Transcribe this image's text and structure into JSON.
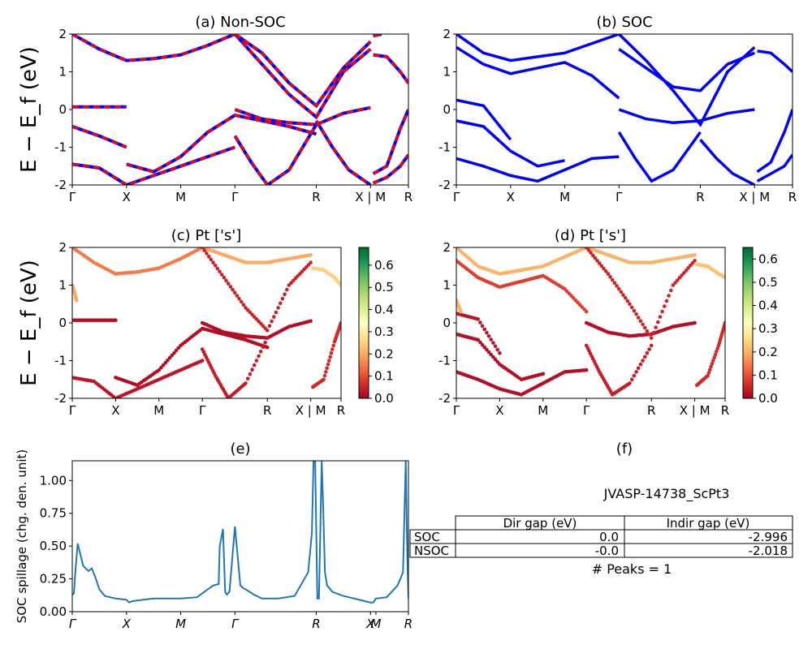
{
  "colors": {
    "nonsoc_red": "#ff0000",
    "nonsoc_blue": "#0000ff",
    "soc_blue": "#0000ff",
    "spillage_line": "#1f77b4",
    "cmap": [
      "#a50026",
      "#d73027",
      "#f46d43",
      "#fdae61",
      "#fee08b",
      "#ffffbf",
      "#d9ef8b",
      "#a6d96a",
      "#66bd63",
      "#1a9850",
      "#006837"
    ]
  },
  "panels": {
    "a": {
      "title": "(a) Non-SOC"
    },
    "b": {
      "title": "(b) SOC"
    },
    "c": {
      "title": "(c)  Pt ['s']"
    },
    "d": {
      "title": "(d) Pt ['s']"
    },
    "e": {
      "title": "(e)"
    },
    "f": {
      "title": "(f)"
    }
  },
  "band_ylabel": "E − E_f (eV)",
  "spillage_ylabel": "SOC spillage (chg. den. unit)",
  "kpath_labels": [
    "Γ",
    "X",
    "M",
    "Γ",
    "R",
    "X | M",
    "R"
  ],
  "spillage_k_labels": [
    "Γ",
    "X",
    "M",
    "Γ",
    "R",
    "X",
    "M",
    "R"
  ],
  "info": {
    "material": "JVASP-14738_ScPt3",
    "table": {
      "col_headers": [
        "Dir gap (eV)",
        "Indir gap (eV)"
      ],
      "rows": [
        {
          "label": "SOC",
          "dir": "0.0",
          "indir": "-2.996"
        },
        {
          "label": "NSOC",
          "dir": "-0.0",
          "indir": "-2.018"
        }
      ]
    },
    "peaks": "# Peaks = 1"
  },
  "chart_data": [
    {
      "panel": "a",
      "type": "line",
      "title": "(a) Non-SOC",
      "ylabel": "E − E_f (eV)",
      "ylim": [
        -2,
        2
      ],
      "yticks": [
        -2,
        -1,
        0,
        1,
        2
      ],
      "xticks": [
        0,
        1,
        2,
        3,
        4.5,
        5.5,
        6.2
      ],
      "xtick_labels": [
        "Γ",
        "X",
        "M",
        "Γ",
        "R",
        "X | M",
        "R"
      ],
      "series": [
        {
          "x": [
            0,
            0.5,
            1,
            1.5,
            2,
            2.5,
            3
          ],
          "y": [
            2.0,
            1.6,
            1.3,
            1.35,
            1.45,
            1.7,
            2.0
          ]
        },
        {
          "x": [
            0,
            0.5,
            1
          ],
          "y": [
            0.07,
            0.07,
            0.07
          ]
        },
        {
          "x": [
            1,
            1.5,
            2,
            2.5,
            3,
            3.5,
            4,
            4.5
          ],
          "y": [
            -1.45,
            -1.65,
            -1.25,
            -0.6,
            -0.15,
            -0.3,
            -0.45,
            -0.65
          ]
        },
        {
          "x": [
            0,
            0.5,
            1,
            1.5,
            2,
            2.5,
            3
          ],
          "y": [
            -1.45,
            -1.55,
            -2.0,
            -1.75,
            -1.5,
            -1.25,
            -1.0
          ]
        },
        {
          "x": [
            0,
            0.5,
            1
          ],
          "y": [
            -0.45,
            -0.7,
            -1.0
          ]
        },
        {
          "x": [
            3,
            3.5,
            4,
            4.5,
            5,
            5.5
          ],
          "y": [
            2.0,
            1.2,
            0.4,
            -0.2,
            1.0,
            1.6
          ]
        },
        {
          "x": [
            3,
            3.5,
            4,
            4.5,
            5,
            5.5
          ],
          "y": [
            2.0,
            1.5,
            0.7,
            0.1,
            1.1,
            1.8
          ]
        },
        {
          "x": [
            3,
            3.5,
            4,
            4.5,
            5,
            5.5
          ],
          "y": [
            0.0,
            -0.25,
            -0.35,
            -0.4,
            -0.1,
            0.05
          ]
        },
        {
          "x": [
            3,
            3.3,
            3.6,
            4,
            4.5
          ],
          "y": [
            -0.7,
            -1.4,
            -2.0,
            -1.6,
            -0.4
          ]
        },
        {
          "x": [
            4.5,
            4.8,
            5.1,
            5.5
          ],
          "y": [
            -0.3,
            -1.0,
            -1.6,
            -2.0
          ]
        },
        {
          "x": [
            5.55,
            5.8,
            6.05,
            6.2
          ],
          "y": [
            1.45,
            1.4,
            1.0,
            0.7
          ]
        },
        {
          "x": [
            5.55,
            5.8,
            6.05,
            6.2
          ],
          "y": [
            -1.7,
            -1.5,
            -0.5,
            0.0
          ]
        },
        {
          "x": [
            5.55,
            5.8,
            6.05,
            6.2
          ],
          "y": [
            -1.95,
            -1.8,
            -1.5,
            -1.2
          ]
        },
        {
          "x": [
            5.55,
            5.7
          ],
          "y": [
            1.95,
            2.0
          ]
        }
      ]
    },
    {
      "panel": "b",
      "type": "line",
      "title": "(b) SOC",
      "ylim": [
        -2,
        2
      ],
      "yticks": [
        -2,
        -1,
        0,
        1,
        2
      ],
      "xticks": [
        0,
        1,
        2,
        3,
        4.5,
        5.5,
        6.2
      ],
      "xtick_labels": [
        "Γ",
        "X",
        "M",
        "Γ",
        "R",
        "X | M",
        "R"
      ],
      "series": [
        {
          "x": [
            0,
            0.5,
            1,
            1.5,
            2,
            2.5,
            3
          ],
          "y": [
            1.65,
            1.2,
            0.95,
            1.1,
            1.25,
            0.9,
            0.3
          ]
        },
        {
          "x": [
            0,
            0.5,
            1,
            1.5,
            2,
            2.5,
            3
          ],
          "y": [
            2.0,
            1.5,
            1.3,
            1.4,
            1.5,
            1.75,
            2.0
          ]
        },
        {
          "x": [
            0,
            0.5,
            1
          ],
          "y": [
            0.25,
            0.1,
            -0.8
          ]
        },
        {
          "x": [
            0,
            0.5,
            1,
            1.5,
            2
          ],
          "y": [
            -0.3,
            -0.45,
            -1.1,
            -1.5,
            -1.35
          ]
        },
        {
          "x": [
            0,
            0.5,
            1,
            1.5,
            2,
            2.5,
            3
          ],
          "y": [
            -1.3,
            -1.5,
            -1.75,
            -1.9,
            -1.6,
            -1.3,
            -1.25
          ]
        },
        {
          "x": [
            3,
            3.5,
            4,
            4.5,
            5,
            5.5
          ],
          "y": [
            2.0,
            1.3,
            0.5,
            -0.4,
            1.0,
            1.65
          ]
        },
        {
          "x": [
            3,
            3.5,
            4,
            4.5,
            5,
            5.5
          ],
          "y": [
            1.6,
            1.1,
            0.6,
            0.5,
            1.2,
            1.5
          ]
        },
        {
          "x": [
            3,
            3.5,
            4,
            4.5,
            5,
            5.5
          ],
          "y": [
            0.0,
            -0.25,
            -0.35,
            -0.3,
            -0.1,
            0.0
          ]
        },
        {
          "x": [
            3,
            3.3,
            3.6,
            4,
            4.5
          ],
          "y": [
            -0.6,
            -1.3,
            -1.9,
            -1.6,
            -0.6
          ]
        },
        {
          "x": [
            4.5,
            4.8,
            5.1,
            5.5
          ],
          "y": [
            -0.8,
            -1.3,
            -1.7,
            -2.0
          ]
        },
        {
          "x": [
            5.55,
            5.8,
            6.05,
            6.2
          ],
          "y": [
            1.55,
            1.5,
            1.2,
            1.0
          ]
        },
        {
          "x": [
            5.55,
            5.8,
            6.05,
            6.2
          ],
          "y": [
            -1.65,
            -1.4,
            -0.6,
            0.0
          ]
        },
        {
          "x": [
            5.55,
            5.8,
            6.05,
            6.2
          ],
          "y": [
            -1.9,
            -1.7,
            -1.5,
            -1.2
          ]
        }
      ]
    },
    {
      "panel": "c",
      "type": "scatter",
      "title": "(c)  Pt ['s']",
      "ylabel": "E − E_f (eV)",
      "ylim": [
        -2,
        2
      ],
      "yticks": [
        -2,
        -1,
        0,
        1,
        2
      ],
      "xticks": [
        0,
        1,
        2,
        3,
        4.5,
        5.5,
        6.2
      ],
      "xtick_labels": [
        "Γ",
        "X",
        "M",
        "Γ",
        "R",
        "X | M",
        "R"
      ],
      "colorbar": {
        "min": 0.0,
        "max": 0.68,
        "ticks": [
          0.0,
          0.1,
          0.2,
          0.3,
          0.4,
          0.5,
          0.6
        ]
      },
      "series": [
        {
          "x": [
            0,
            0.5,
            1,
            1.5,
            2,
            2.5,
            3
          ],
          "y": [
            2.0,
            1.6,
            1.3,
            1.35,
            1.45,
            1.7,
            2.0
          ],
          "w": 0.15
        },
        {
          "x": [
            3,
            3.5,
            4,
            4.5,
            5,
            5.5
          ],
          "y": [
            2.0,
            1.8,
            1.6,
            1.6,
            1.7,
            1.8
          ],
          "w": 0.2
        },
        {
          "x": [
            5.55,
            5.8,
            6.05,
            6.2
          ],
          "y": [
            1.45,
            1.4,
            1.2,
            1.0
          ],
          "w": 0.25
        },
        {
          "x": [
            0,
            0.5,
            1
          ],
          "y": [
            0.07,
            0.07,
            0.07
          ],
          "w": 0.02
        },
        {
          "x": [
            0,
            0.5,
            1,
            1.5,
            2,
            2.5,
            3
          ],
          "y": [
            -1.45,
            -1.55,
            -2.0,
            -1.75,
            -1.5,
            -1.25,
            -1.0
          ],
          "w": 0.03
        },
        {
          "x": [
            1,
            1.5,
            2,
            2.5,
            3,
            3.5,
            4,
            4.5
          ],
          "y": [
            -1.45,
            -1.65,
            -1.25,
            -0.6,
            -0.15,
            -0.3,
            -0.45,
            -0.65
          ],
          "w": 0.02
        },
        {
          "x": [
            3,
            3.5,
            4,
            4.5,
            5,
            5.5
          ],
          "y": [
            0.0,
            -0.25,
            -0.35,
            -0.4,
            -0.1,
            0.05
          ],
          "w": 0.02
        },
        {
          "x": [
            3,
            3.5,
            4,
            4.5,
            5,
            5.5
          ],
          "y": [
            2.0,
            1.2,
            0.4,
            -0.2,
            1.0,
            1.6
          ],
          "w": 0.05
        },
        {
          "x": [
            3,
            3.3,
            3.6,
            4,
            4.5
          ],
          "y": [
            -0.7,
            -1.4,
            -2.0,
            -1.6,
            -0.4
          ],
          "w": 0.04
        },
        {
          "x": [
            5.55,
            5.8,
            6.05,
            6.2
          ],
          "y": [
            -1.7,
            -1.5,
            -0.5,
            0.0
          ],
          "w": 0.06
        },
        {
          "x": [
            0,
            0.1
          ],
          "y": [
            1.0,
            0.6
          ],
          "w": 0.2
        }
      ]
    },
    {
      "panel": "d",
      "type": "scatter",
      "title": "(d) Pt ['s']",
      "ylim": [
        -2,
        2
      ],
      "yticks": [
        -2,
        -1,
        0,
        1,
        2
      ],
      "xticks": [
        0,
        1,
        2,
        3,
        4.5,
        5.5,
        6.2
      ],
      "xtick_labels": [
        "Γ",
        "X",
        "M",
        "Γ",
        "R",
        "X | M",
        "R"
      ],
      "colorbar": {
        "min": 0.0,
        "max": 0.65,
        "ticks": [
          0.0,
          0.1,
          0.2,
          0.3,
          0.4,
          0.5,
          0.6
        ]
      },
      "series": [
        {
          "x": [
            0,
            0.5,
            1,
            1.5,
            2,
            2.5,
            3
          ],
          "y": [
            1.65,
            1.2,
            0.95,
            1.1,
            1.25,
            0.9,
            0.3
          ],
          "w": 0.08
        },
        {
          "x": [
            0,
            0.5,
            1,
            1.5,
            2,
            2.5,
            3
          ],
          "y": [
            2.0,
            1.5,
            1.3,
            1.4,
            1.5,
            1.75,
            2.0
          ],
          "w": 0.2
        },
        {
          "x": [
            3,
            3.5,
            4,
            4.5,
            5,
            5.5
          ],
          "y": [
            2.0,
            1.8,
            1.6,
            1.6,
            1.7,
            1.8
          ],
          "w": 0.2
        },
        {
          "x": [
            5.55,
            5.8,
            6.05,
            6.2
          ],
          "y": [
            1.55,
            1.5,
            1.3,
            1.2
          ],
          "w": 0.22
        },
        {
          "x": [
            0,
            0.5,
            1
          ],
          "y": [
            0.25,
            0.1,
            -0.8
          ],
          "w": 0.03
        },
        {
          "x": [
            0,
            0.5,
            1,
            1.5,
            2
          ],
          "y": [
            -0.3,
            -0.45,
            -1.1,
            -1.5,
            -1.35
          ],
          "w": 0.02
        },
        {
          "x": [
            0,
            0.5,
            1,
            1.5,
            2,
            2.5,
            3
          ],
          "y": [
            -1.3,
            -1.5,
            -1.75,
            -1.9,
            -1.6,
            -1.3,
            -1.25
          ],
          "w": 0.02
        },
        {
          "x": [
            3,
            3.5,
            4,
            4.5,
            5,
            5.5
          ],
          "y": [
            0.0,
            -0.25,
            -0.35,
            -0.3,
            -0.1,
            0.0
          ],
          "w": 0.02
        },
        {
          "x": [
            3,
            3.5,
            4,
            4.5,
            5,
            5.5
          ],
          "y": [
            2.0,
            1.3,
            0.5,
            -0.4,
            1.0,
            1.65
          ],
          "w": 0.05
        },
        {
          "x": [
            3,
            3.3,
            3.6,
            4,
            4.5
          ],
          "y": [
            -0.6,
            -1.3,
            -1.9,
            -1.6,
            -0.6
          ],
          "w": 0.04
        },
        {
          "x": [
            5.55,
            5.8,
            6.05,
            6.2
          ],
          "y": [
            -1.65,
            -1.4,
            -0.6,
            0.0
          ],
          "w": 0.06
        },
        {
          "x": [
            0,
            0.1
          ],
          "y": [
            0.6,
            0.3
          ],
          "w": 0.2
        }
      ]
    },
    {
      "panel": "e",
      "type": "line",
      "title": "(e)",
      "ylabel": "SOC spillage (chg. den. unit)",
      "ylim": [
        0,
        1.15
      ],
      "yticks": [
        0.0,
        0.25,
        0.5,
        0.75,
        1.0
      ],
      "xlim": [
        0,
        6.2
      ],
      "xticks": [
        0,
        1,
        2,
        3,
        4.5,
        5.5,
        5.6,
        6.2
      ],
      "xtick_labels": [
        "Γ",
        "X",
        "M",
        "Γ",
        "R",
        "X",
        "M",
        "R"
      ],
      "series": [
        {
          "name": "",
          "x": [
            0,
            0.03,
            0.06,
            0.1,
            0.2,
            0.3,
            0.36,
            0.42,
            0.5,
            0.6,
            0.8,
            1.0,
            1.05,
            1.1,
            1.3,
            1.5,
            1.8,
            2.0,
            2.3,
            2.5,
            2.6,
            2.7,
            2.72,
            2.78,
            2.82,
            2.85,
            2.9,
            3.0,
            3.1,
            3.15,
            3.2,
            3.35,
            3.5,
            3.8,
            4.1,
            4.35,
            4.42,
            4.45,
            4.48,
            4.52,
            4.55,
            4.6,
            4.62,
            4.66,
            4.7,
            4.8,
            5.0,
            5.3,
            5.5,
            5.55,
            5.6,
            5.8,
            6.0,
            6.1,
            6.15,
            6.18,
            6.2
          ],
          "y": [
            0.13,
            0.14,
            0.32,
            0.52,
            0.35,
            0.31,
            0.33,
            0.27,
            0.17,
            0.12,
            0.1,
            0.09,
            0.07,
            0.08,
            0.09,
            0.1,
            0.1,
            0.1,
            0.11,
            0.17,
            0.2,
            0.21,
            0.5,
            0.63,
            0.15,
            0.13,
            0.15,
            0.65,
            0.2,
            0.18,
            0.17,
            0.13,
            0.1,
            0.1,
            0.12,
            0.3,
            0.6,
            1.15,
            1.15,
            0.1,
            0.1,
            1.15,
            0.9,
            0.3,
            0.2,
            0.15,
            0.12,
            0.09,
            0.07,
            0.07,
            0.1,
            0.11,
            0.2,
            0.3,
            1.15,
            0.4,
            0.1
          ]
        }
      ]
    }
  ]
}
